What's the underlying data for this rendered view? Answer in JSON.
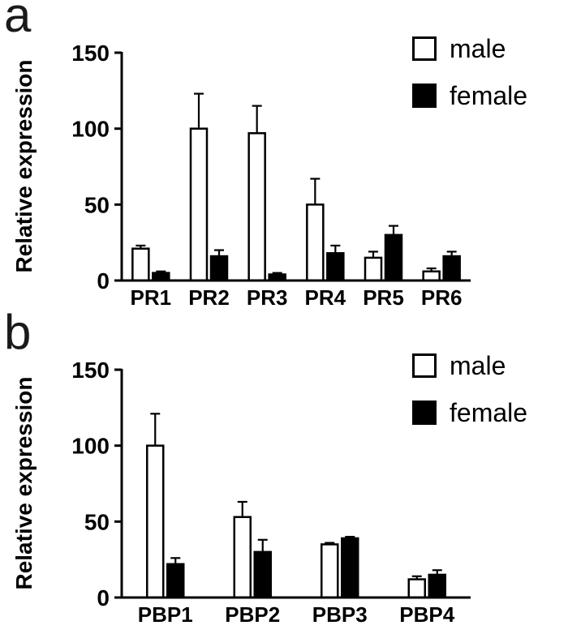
{
  "figure": {
    "background": "#ffffff",
    "axis_color": "#000000",
    "bar_outline_color": "#000000"
  },
  "chart_data": [
    {
      "type": "bar",
      "panel_label": "a",
      "title": "",
      "xlabel": "",
      "ylabel": "Relative expression",
      "ylim": [
        0,
        150
      ],
      "yticks": [
        0,
        50,
        100,
        150
      ],
      "grid": false,
      "legend_position": "top-right",
      "categories": [
        "PR1",
        "PR2",
        "PR3",
        "PR4",
        "PR5",
        "PR6"
      ],
      "series": [
        {
          "name": "male",
          "fill": "#ffffff",
          "values": [
            21,
            100,
            97,
            50,
            15,
            6
          ],
          "errors": [
            2,
            23,
            18,
            17,
            4,
            2
          ]
        },
        {
          "name": "female",
          "fill": "#000000",
          "values": [
            5,
            16,
            4,
            18,
            30,
            16
          ],
          "errors": [
            1,
            4,
            1,
            5,
            6,
            3
          ]
        }
      ]
    },
    {
      "type": "bar",
      "panel_label": "b",
      "title": "",
      "xlabel": "",
      "ylabel": "Relative expression",
      "ylim": [
        0,
        150
      ],
      "yticks": [
        0,
        50,
        100,
        150
      ],
      "grid": false,
      "legend_position": "top-right",
      "categories": [
        "PBP1",
        "PBP2",
        "PBP3",
        "PBP4"
      ],
      "series": [
        {
          "name": "male",
          "fill": "#ffffff",
          "values": [
            100,
            53,
            35,
            12
          ],
          "errors": [
            21,
            10,
            1,
            2
          ]
        },
        {
          "name": "female",
          "fill": "#000000",
          "values": [
            22,
            30,
            39,
            15
          ],
          "errors": [
            4,
            8,
            1,
            3
          ]
        }
      ]
    }
  ]
}
